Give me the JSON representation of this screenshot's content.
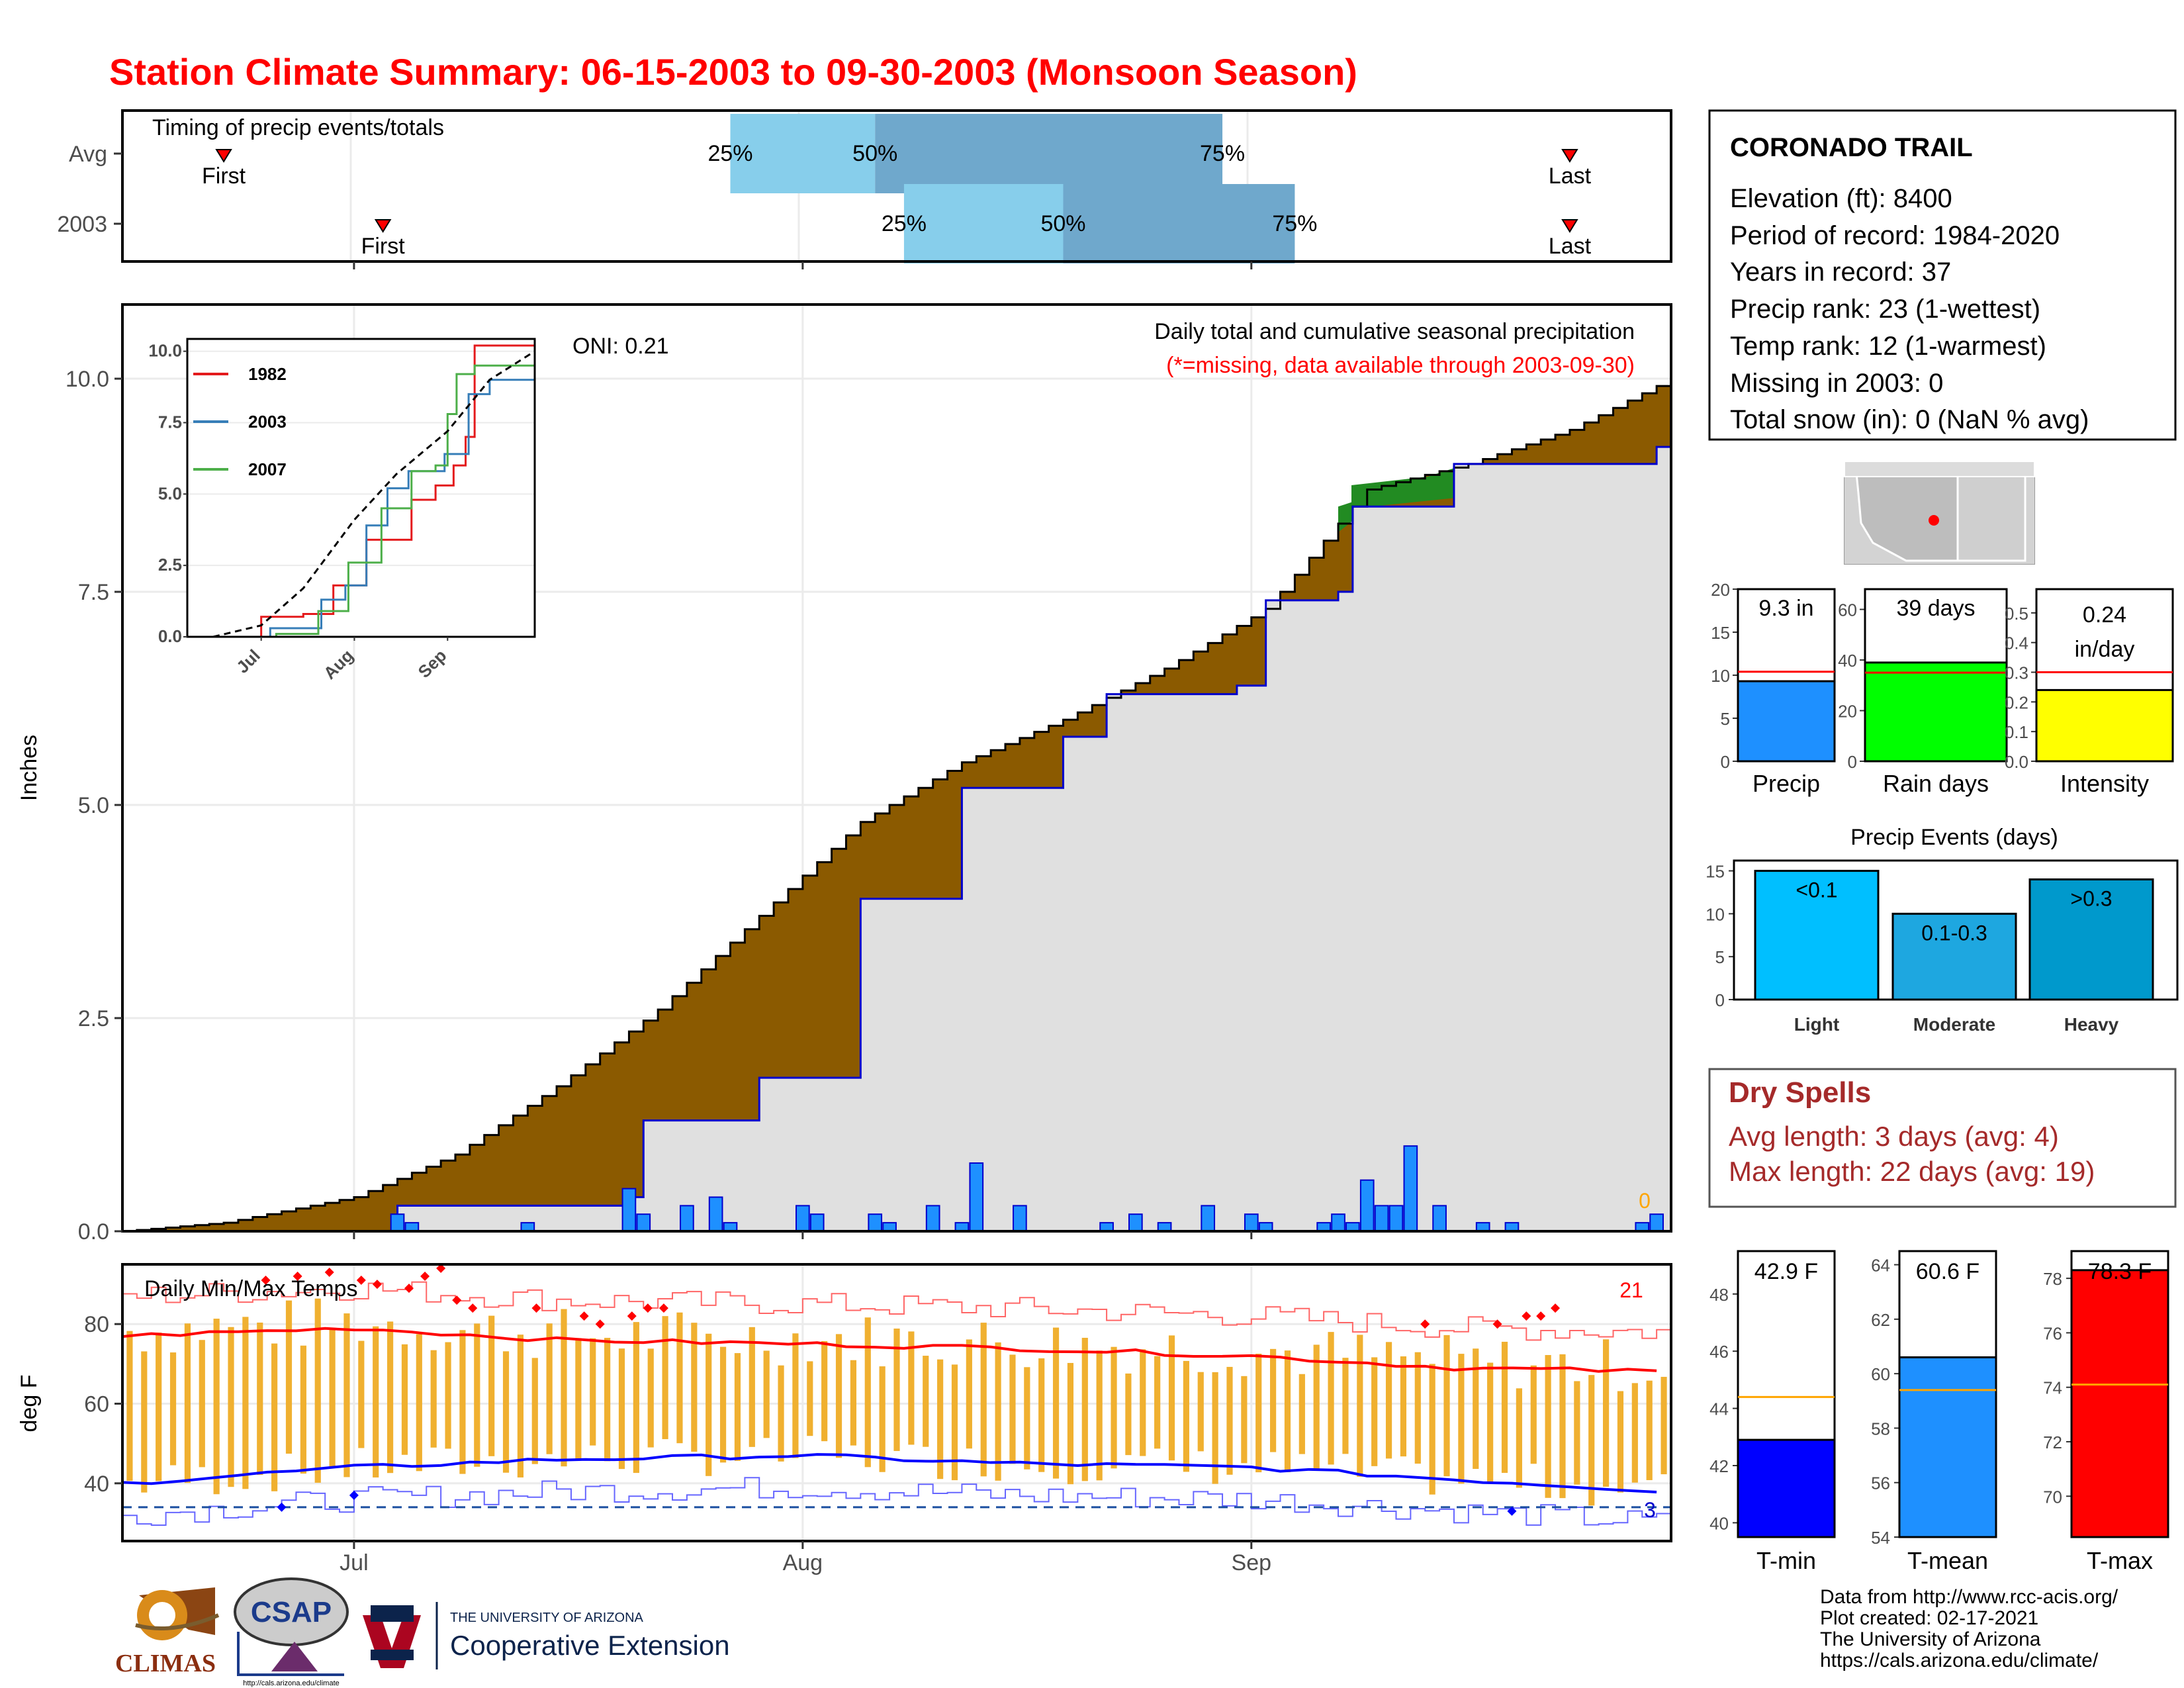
{
  "title": "Station Climate Summary: 06-15-2003 to 09-30-2003 (Monsoon Season)",
  "colors": {
    "title": "#ff0000",
    "cumulative_fill": "#8b5a00",
    "ahead_fill": "#228b22",
    "avg_area": "#e0e0e0",
    "daily_bars": "#1e90ff",
    "temp_bars": "#f0b030"
  },
  "timing": {
    "title": "Timing of precip events/totals",
    "rows": [
      {
        "label": "Avg",
        "first_label": "First",
        "last_label": "Last",
        "p25_label": "25%",
        "p50_label": "50%",
        "p75_label": "75%",
        "first_day": "06-22",
        "p25_day": "07-27",
        "p50_day": "08-06",
        "p75_day": "08-30",
        "last_day": "09-23"
      },
      {
        "label": "2003",
        "first_label": "First",
        "last_label": "Last",
        "p25_label": "25%",
        "p50_label": "50%",
        "p75_label": "75%",
        "first_day": "07-03",
        "p25_day": "08-08",
        "p50_day": "08-19",
        "p75_day": "09-04",
        "last_day": "09-23"
      }
    ]
  },
  "precip_panel": {
    "ylabel": "Inches",
    "yticks": [
      "0.0",
      "2.5",
      "5.0",
      "7.5",
      "10.0"
    ],
    "oni": "ONI: 0.21",
    "subtitle": "Daily total and cumulative seasonal precipitation",
    "note": "(*=missing, data available through 2003-09-30)",
    "missing_count": "0",
    "xticks": [
      "Jul",
      "Aug",
      "Sep"
    ]
  },
  "inset": {
    "yticks": [
      "0.0",
      "2.5",
      "5.0",
      "7.5",
      "10.0"
    ],
    "xticks": [
      "Jul",
      "Aug",
      "Sep"
    ],
    "legend": [
      {
        "name": "1982",
        "color": "#e41a1c"
      },
      {
        "name": "2003",
        "color": "#377eb8"
      },
      {
        "name": "2007",
        "color": "#4daf4a"
      }
    ]
  },
  "temp_panel": {
    "ylabel": "deg F",
    "title": "Daily Min/Max Temps",
    "yticks": [
      "40",
      "60",
      "80"
    ],
    "record_high_count": "21",
    "record_low_count": "3",
    "xticks": [
      "Jul",
      "Aug",
      "Sep"
    ]
  },
  "station": {
    "name": "CORONADO TRAIL",
    "lines": [
      "Elevation (ft): 8400",
      "Period of record: 1984-2020",
      "Years in record: 37",
      "Precip rank: 23 (1-wettest)",
      "Temp rank: 12 (1-warmest)",
      "Missing in 2003: 0",
      "Total snow (in): 0 (NaN % avg)"
    ]
  },
  "summary_bars": [
    {
      "name": "Precip",
      "label": "9.3 in",
      "value": 9.3,
      "avg": 10.4,
      "max": 20,
      "yticks": [
        "0",
        "5",
        "10",
        "15",
        "20"
      ],
      "color": "#1e90ff"
    },
    {
      "name": "Rain days",
      "label": "39 days",
      "value": 39,
      "avg": 35,
      "max": 68,
      "yticks": [
        "0",
        "20",
        "40",
        "60"
      ],
      "color": "#00ff00"
    },
    {
      "name": "Intensity",
      "label_line1": "0.24",
      "label_line2": "in/day",
      "value": 0.24,
      "avg": 0.3,
      "max": 0.58,
      "yticks": [
        "0.0",
        "0.1",
        "0.2",
        "0.3",
        "0.4",
        "0.5"
      ],
      "color": "#ffff00"
    }
  ],
  "events": {
    "title": "Precip Events (days)",
    "yticks": [
      "0",
      "5",
      "10",
      "15"
    ],
    "bars": [
      {
        "name": "Light",
        "label": "<0.1",
        "value": 15,
        "color": "#00bfff"
      },
      {
        "name": "Moderate",
        "label": "0.1-0.3",
        "value": 10,
        "color": "#1ea7e0"
      },
      {
        "name": "Heavy",
        "label": ">0.3",
        "value": 14,
        "color": "#0099cc"
      }
    ]
  },
  "dry_spells": {
    "title": "Dry Spells",
    "avg_line": "Avg length: 3 days (avg: 4)",
    "max_line": "Max length: 22 days (avg: 19)"
  },
  "temps": [
    {
      "name": "T-min",
      "label": "42.9 F",
      "value": 42.9,
      "avg": 44.4,
      "min": 39.5,
      "max": 49.5,
      "yticks": [
        "40",
        "42",
        "44",
        "46",
        "48"
      ],
      "color": "#0000ff"
    },
    {
      "name": "T-mean",
      "label": "60.6 F",
      "value": 60.6,
      "avg": 59.4,
      "min": 54,
      "max": 64.5,
      "yticks": [
        "54",
        "56",
        "58",
        "60",
        "62",
        "64"
      ],
      "color": "#1e90ff"
    },
    {
      "name": "T-max",
      "label": "78.3 F",
      "value": 78.3,
      "avg": 74.1,
      "min": 68.5,
      "max": 79,
      "yticks": [
        "70",
        "72",
        "74",
        "76",
        "78"
      ],
      "color": "#ff0000"
    }
  ],
  "footer": [
    "Data from http://www.rcc-acis.org/",
    "Plot created: 02-17-2021",
    "The University of Arizona",
    "https://cals.arizona.edu/climate/"
  ],
  "logos": {
    "climas": "CLIMAS",
    "csap": "CSAP",
    "csap_url": "http://cals.arizona.edu/climate",
    "ua_line1": "THE UNIVERSITY OF ARIZONA",
    "ua_line2": "Cooperative Extension"
  },
  "chart_data": [
    {
      "type": "area",
      "title": "Daily total and cumulative seasonal precipitation",
      "ylabel": "Inches",
      "x_range": [
        "2003-06-15",
        "2003-09-30"
      ],
      "ylim": [
        0,
        11
      ],
      "series": [
        {
          "name": "cumulative average",
          "x": [
            "06-15",
            "06-22",
            "07-01",
            "07-08",
            "07-15",
            "07-22",
            "07-29",
            "08-05",
            "08-12",
            "08-19",
            "08-26",
            "09-02",
            "09-09",
            "09-16",
            "09-23",
            "09-30"
          ],
          "values": [
            0.0,
            0.1,
            0.4,
            0.9,
            1.7,
            2.6,
            3.7,
            4.8,
            5.5,
            6.0,
            6.6,
            7.3,
            8.7,
            9.0,
            9.4,
            10.0
          ]
        },
        {
          "name": "cumulative 2003",
          "x": [
            "06-15",
            "07-02",
            "07-04",
            "07-20",
            "07-21",
            "07-29",
            "08-05",
            "08-12",
            "08-19",
            "08-22",
            "08-31",
            "09-02",
            "09-07",
            "09-08",
            "09-15",
            "09-29",
            "09-30"
          ],
          "values": [
            0.0,
            0.0,
            0.3,
            0.4,
            1.3,
            1.8,
            3.9,
            5.2,
            5.8,
            6.3,
            6.4,
            7.4,
            7.5,
            8.5,
            9.0,
            9.2,
            9.3
          ]
        }
      ],
      "daily_bars": {
        "x": [
          "07-04",
          "07-05",
          "07-13",
          "07-20",
          "07-21",
          "07-24",
          "07-26",
          "07-27",
          "08-01",
          "08-02",
          "08-06",
          "08-07",
          "08-10",
          "08-12",
          "08-13",
          "08-16",
          "08-22",
          "08-24",
          "08-26",
          "08-29",
          "09-01",
          "09-02",
          "09-06",
          "09-07",
          "09-08",
          "09-09",
          "09-10",
          "09-11",
          "09-12",
          "09-14",
          "09-17",
          "09-19",
          "09-28",
          "09-29"
        ],
        "values": [
          0.2,
          0.1,
          0.1,
          0.5,
          0.2,
          0.3,
          0.4,
          0.1,
          0.3,
          0.2,
          0.2,
          0.1,
          0.3,
          0.1,
          0.8,
          0.3,
          0.1,
          0.2,
          0.1,
          0.3,
          0.2,
          0.1,
          0.1,
          0.2,
          0.1,
          0.6,
          0.3,
          0.3,
          1.0,
          0.3,
          0.1,
          0.1,
          0.1,
          0.2
        ]
      }
    },
    {
      "type": "line",
      "title": "",
      "x_range": [
        "06-15",
        "09-30"
      ],
      "ylim": [
        0,
        10.2
      ],
      "series": [
        {
          "name": "1982",
          "x": [
            "06-15",
            "07-01",
            "07-15",
            "07-25",
            "08-05",
            "08-20",
            "08-28",
            "09-03",
            "09-07",
            "09-10",
            "09-30"
          ],
          "values": [
            0.0,
            0.7,
            0.8,
            1.8,
            3.4,
            4.8,
            5.3,
            6.0,
            7.0,
            10.2,
            10.2
          ]
        },
        {
          "name": "2003",
          "x": [
            "06-15",
            "07-04",
            "07-21",
            "07-29",
            "08-05",
            "08-12",
            "08-19",
            "08-31",
            "09-08",
            "09-15",
            "09-30"
          ],
          "values": [
            0.0,
            0.3,
            1.3,
            1.8,
            3.9,
            5.2,
            5.8,
            6.4,
            8.5,
            9.0,
            9.3
          ]
        },
        {
          "name": "2007",
          "x": [
            "06-15",
            "07-06",
            "07-20",
            "07-30",
            "08-10",
            "08-20",
            "08-28",
            "09-01",
            "09-04",
            "09-10",
            "09-30"
          ],
          "values": [
            0.0,
            0.1,
            0.9,
            2.6,
            4.5,
            5.8,
            6.0,
            7.8,
            9.2,
            9.5,
            9.5
          ]
        },
        {
          "name": "average",
          "x": [
            "06-15",
            "07-01",
            "07-15",
            "08-01",
            "08-15",
            "09-01",
            "09-15",
            "09-30"
          ],
          "values": [
            0.0,
            0.4,
            1.7,
            4.1,
            5.7,
            7.2,
            9.0,
            10.0
          ]
        }
      ]
    },
    {
      "type": "bar",
      "title": "Daily Min/Max Temps",
      "ylabel": "deg F",
      "ylim": [
        25,
        95
      ],
      "x_range": [
        "06-15",
        "09-30"
      ],
      "series": [
        {
          "name": "average max",
          "x": [
            "06-15",
            "07-01",
            "07-15",
            "08-01",
            "08-15",
            "09-01",
            "09-15",
            "09-30"
          ],
          "values": [
            77,
            79,
            76,
            75,
            74,
            72,
            69,
            68
          ]
        },
        {
          "name": "average min",
          "x": [
            "06-15",
            "07-01",
            "07-15",
            "08-01",
            "08-15",
            "09-01",
            "09-15",
            "09-30"
          ],
          "values": [
            40,
            44,
            46,
            47,
            45,
            44,
            41,
            38
          ]
        },
        {
          "name": "record low",
          "value": 34
        }
      ]
    },
    {
      "type": "bar",
      "categories": [
        "Precip",
        "Rain days",
        "Intensity"
      ],
      "values": [
        9.3,
        39,
        0.24
      ]
    },
    {
      "type": "bar",
      "title": "Precip Events (days)",
      "categories": [
        "Light",
        "Moderate",
        "Heavy"
      ],
      "values": [
        15,
        10,
        14
      ],
      "ylim": [
        0,
        16
      ]
    },
    {
      "type": "bar",
      "categories": [
        "T-min",
        "T-mean",
        "T-max"
      ],
      "values": [
        42.9,
        60.6,
        78.3
      ]
    }
  ]
}
